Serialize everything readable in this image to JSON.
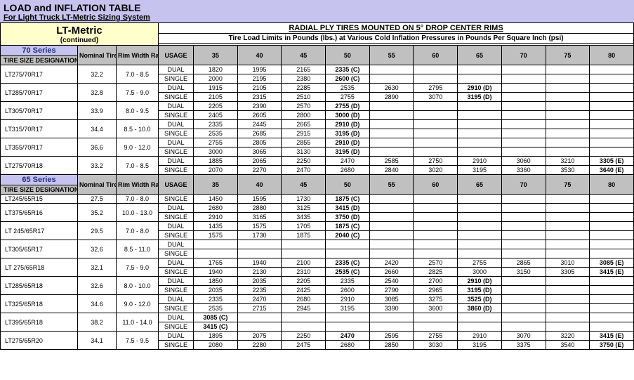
{
  "header": {
    "title": "LOAD and INFLATION TABLE",
    "subtitle": "For Light Truck LT-Metric Sizing System"
  },
  "ltmetric": {
    "name": "LT-Metric",
    "continued": "(continued)"
  },
  "radial_title": "RADIAL PLY TIRES MOUNTED ON 5° DROP CENTER RIMS",
  "radial_sub": "Tire Load Limits in Pounds (lbs.) at Various Cold Inflation Pressures in Pounds Per Square Inch (psi)",
  "col_nominal": "Nominal Tire O.D. *",
  "col_rimwidth": "Rim Width Range",
  "col_usage": "USAGE",
  "col_tsd": "TIRE SIZE DESIGNATION",
  "series70": "70 Series",
  "series65": "65 Series",
  "dual": "DUAL",
  "single": "SINGLE",
  "psi_cols": [
    "35",
    "40",
    "45",
    "50",
    "55",
    "60",
    "65",
    "70",
    "75",
    "80"
  ],
  "rows70": [
    {
      "name": "LT275/70R17",
      "od": "32.2",
      "rim": "7.0 - 8.5",
      "dual": [
        "1820",
        "1995",
        "2165",
        "2335 (C)",
        "",
        "",
        "",
        "",
        "",
        ""
      ],
      "single": [
        "2000",
        "2195",
        "2380",
        "2600 (C)",
        "",
        "",
        "",
        "",
        "",
        ""
      ],
      "bold": {
        "dual50": true,
        "single50": true
      }
    },
    {
      "name": "LT285/70R17",
      "od": "32.8",
      "rim": "7.5 - 9.0",
      "dual": [
        "1915",
        "2105",
        "2285",
        "2535",
        "2630",
        "2795",
        "2910 (D)",
        "",
        "",
        ""
      ],
      "single": [
        "2105",
        "2315",
        "2510",
        "2755",
        "2890",
        "3070",
        "3195 (D)",
        "",
        "",
        ""
      ],
      "bold": {
        "dual65": true,
        "single65": true
      }
    },
    {
      "name": "LT305/70R17",
      "od": "33.9",
      "rim": "8.0 - 9.5",
      "dual": [
        "2205",
        "2390",
        "2570",
        "2755 (D)",
        "",
        "",
        "",
        "",
        "",
        ""
      ],
      "single": [
        "2405",
        "2605",
        "2800",
        "3000 (D)",
        "",
        "",
        "",
        "",
        "",
        ""
      ],
      "bold": {
        "dual50": true,
        "single50": true
      }
    },
    {
      "name": "LT315/70R17",
      "od": "34.4",
      "rim": "8.5 - 10.0",
      "dual": [
        "2335",
        "2445",
        "2665",
        "2910 (D)",
        "",
        "",
        "",
        "",
        "",
        ""
      ],
      "single": [
        "2535",
        "2685",
        "2915",
        "3195 (D)",
        "",
        "",
        "",
        "",
        "",
        ""
      ],
      "bold": {
        "dual50": true,
        "single50": true
      }
    },
    {
      "name": "LT355/70R17",
      "od": "36.6",
      "rim": "9.0 - 12.0",
      "dual": [
        "2755",
        "2805",
        "2855",
        "2910 (D)",
        "",
        "",
        "",
        "",
        "",
        ""
      ],
      "single": [
        "3000",
        "3065",
        "3130",
        "3195 (D)",
        "",
        "",
        "",
        "",
        "",
        ""
      ],
      "bold": {
        "dual50": true,
        "single50": true
      }
    },
    {
      "name": "LT275/70R18",
      "od": "33.2",
      "rim": "7.0 - 8.5",
      "dual": [
        "1885",
        "2065",
        "2250",
        "2470",
        "2585",
        "2750",
        "2910",
        "3060",
        "3210",
        "3305 (E)"
      ],
      "single": [
        "2070",
        "2270",
        "2470",
        "2680",
        "2840",
        "3020",
        "3195",
        "3360",
        "3530",
        "3640 (E)"
      ],
      "bold": {
        "dual80": true,
        "single80": true
      }
    }
  ],
  "rows65": [
    {
      "name": "LT245/65R15",
      "od": "27.5",
      "rim": "7.0 - 8.0",
      "single_only": true,
      "single": [
        "1450",
        "1595",
        "1730",
        "1875 (C)",
        "",
        "",
        "",
        "",
        "",
        ""
      ],
      "bold": {
        "single50": true
      }
    },
    {
      "name": "LT375/65R16",
      "od": "35.2",
      "rim": "10.0 - 13.0",
      "dual": [
        "2680",
        "2880",
        "3125",
        "3415 (D)",
        "",
        "",
        "",
        "",
        "",
        ""
      ],
      "single": [
        "2910",
        "3165",
        "3435",
        "3750 (D)",
        "",
        "",
        "",
        "",
        "",
        ""
      ],
      "bold": {
        "dual50": true,
        "single50": true
      }
    },
    {
      "name": "LT 245/65R17",
      "od": "29.5",
      "rim": "7.0 - 8.0",
      "dual": [
        "1435",
        "1575",
        "1705",
        "1875 (C)",
        "",
        "",
        "",
        "",
        "",
        ""
      ],
      "single": [
        "1575",
        "1730",
        "1875",
        "2040 (C)",
        "",
        "",
        "",
        "",
        "",
        ""
      ],
      "bold": {
        "dual50": true,
        "single50": true
      }
    },
    {
      "name": "LT305/65R17",
      "od": "32.6",
      "rim": "8.5 - 11.0",
      "dual": [
        "",
        "",
        "",
        "",
        "",
        "",
        "",
        "",
        "",
        ""
      ],
      "single": [
        "",
        "",
        "",
        "",
        "",
        "",
        "",
        "",
        "",
        ""
      ],
      "bold": {}
    },
    {
      "name": "LT 275/65R18",
      "od": "32.1",
      "rim": "7.5 - 9.0",
      "dual": [
        "1765",
        "1940",
        "2100",
        "2335 (C)",
        "2420",
        "2570",
        "2755",
        "2865",
        "3010",
        "3085 (E)"
      ],
      "single": [
        "1940",
        "2130",
        "2310",
        "2535 (C)",
        "2660",
        "2825",
        "3000",
        "3150",
        "3305",
        "3415 (E)"
      ],
      "bold": {
        "dual50": true,
        "single50": true,
        "dual80": true,
        "single80": true
      }
    },
    {
      "name": "LT285/65R18",
      "od": "32.6",
      "rim": "8.0 - 10.0",
      "dual": [
        "1850",
        "2035",
        "2205",
        "2335",
        "2540",
        "2700",
        "2910 (D)",
        "",
        "",
        ""
      ],
      "single": [
        "2035",
        "2235",
        "2425",
        "2600",
        "2790",
        "2965",
        "3195 (D)",
        "",
        "",
        ""
      ],
      "bold": {
        "dual65": true,
        "single65": true
      }
    },
    {
      "name": "LT325/65R18",
      "od": "34.6",
      "rim": "9.0 - 12.0",
      "dual": [
        "2335",
        "2470",
        "2680",
        "2910",
        "3085",
        "3275",
        "3525 (D)",
        "",
        "",
        ""
      ],
      "single": [
        "2535",
        "2715",
        "2945",
        "3195",
        "3390",
        "3600",
        "3860 (D)",
        "",
        "",
        ""
      ],
      "bold": {
        "dual65": true,
        "single65": true
      }
    },
    {
      "name": "LT395/65R18",
      "od": "38.2",
      "rim": "11.0 - 14.0",
      "dual": [
        "3085 (C)",
        "",
        "",
        "",
        "",
        "",
        "",
        "",
        "",
        ""
      ],
      "single": [
        "3415 (C)",
        "",
        "",
        "",
        "",
        "",
        "",
        "",
        "",
        ""
      ],
      "bold": {
        "dual35": true,
        "single35": true
      }
    },
    {
      "name": "LT275/65R20",
      "od": "34.1",
      "rim": "7.5 - 9.5",
      "dual": [
        "1895",
        "2075",
        "2250",
        "2470",
        "2595",
        "2755",
        "2910",
        "3070",
        "3220",
        "3415 (E)"
      ],
      "single": [
        "2080",
        "2280",
        "2475",
        "2680",
        "2850",
        "3030",
        "3195",
        "3375",
        "3540",
        "3750 (E)"
      ],
      "bold": {
        "dual50": true,
        "dual80": true,
        "single80": true
      }
    }
  ]
}
